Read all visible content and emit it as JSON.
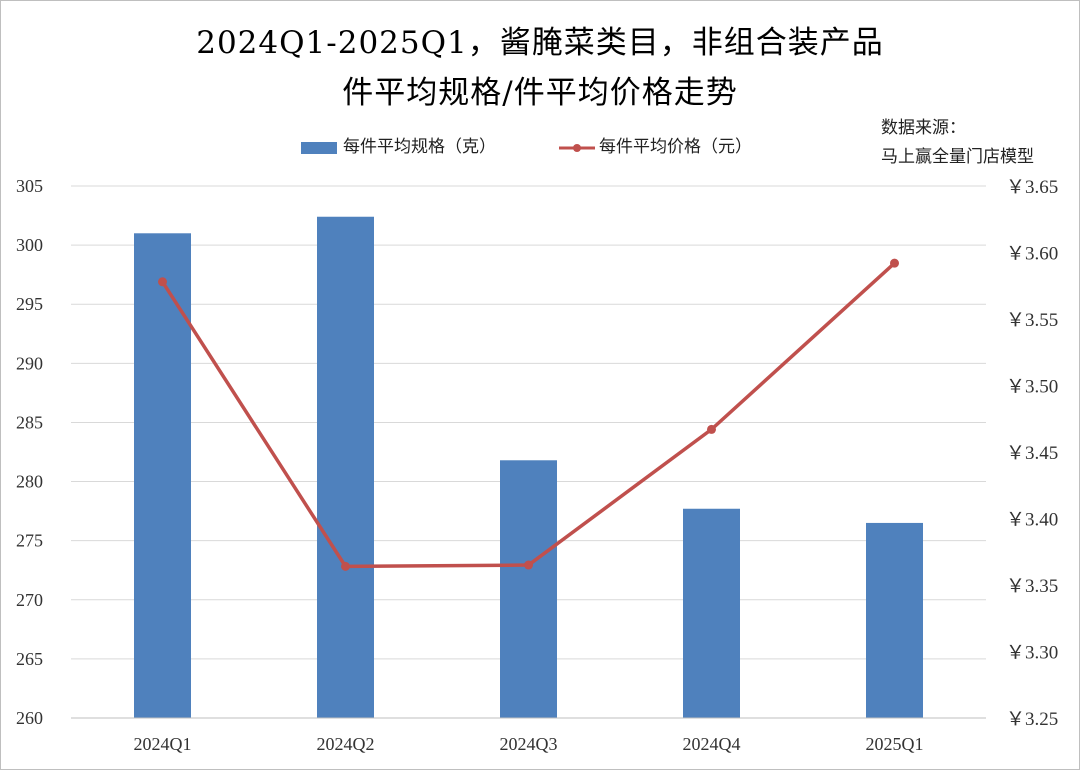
{
  "title_line1": "2024Q1-2025Q1，酱腌菜类目，非组合装产品",
  "title_line2": "件平均规格/件平均价格走势",
  "source_line1": "数据来源：",
  "source_line2": "马上赢全量门店模型",
  "colors": {
    "bar": "#4f81bd",
    "line": "#c0504d",
    "grid": "#d9d9d9"
  },
  "chart_data": {
    "type": "bar",
    "categories": [
      "2024Q1",
      "2024Q2",
      "2024Q3",
      "2024Q4",
      "2025Q1"
    ],
    "series": [
      {
        "name": "每件平均规格（克）",
        "type": "bar",
        "axis": "left",
        "values": [
          301.0,
          302.4,
          281.8,
          277.7,
          276.5
        ]
      },
      {
        "name": "每件平均价格（元）",
        "type": "line",
        "axis": "right",
        "values": [
          3.578,
          3.364,
          3.365,
          3.467,
          3.592
        ]
      }
    ],
    "y_left": {
      "min": 260,
      "max": 305,
      "ticks": [
        "305",
        "300",
        "295",
        "290",
        "285",
        "280",
        "275",
        "270",
        "265",
        "260"
      ]
    },
    "y_right": {
      "min": 3.25,
      "max": 3.65,
      "ticks": [
        "￥3.65",
        "￥3.60",
        "￥3.55",
        "￥3.50",
        "￥3.45",
        "￥3.40",
        "￥3.35",
        "￥3.30",
        "￥3.25"
      ]
    },
    "grid": true,
    "legend": "top-center"
  }
}
